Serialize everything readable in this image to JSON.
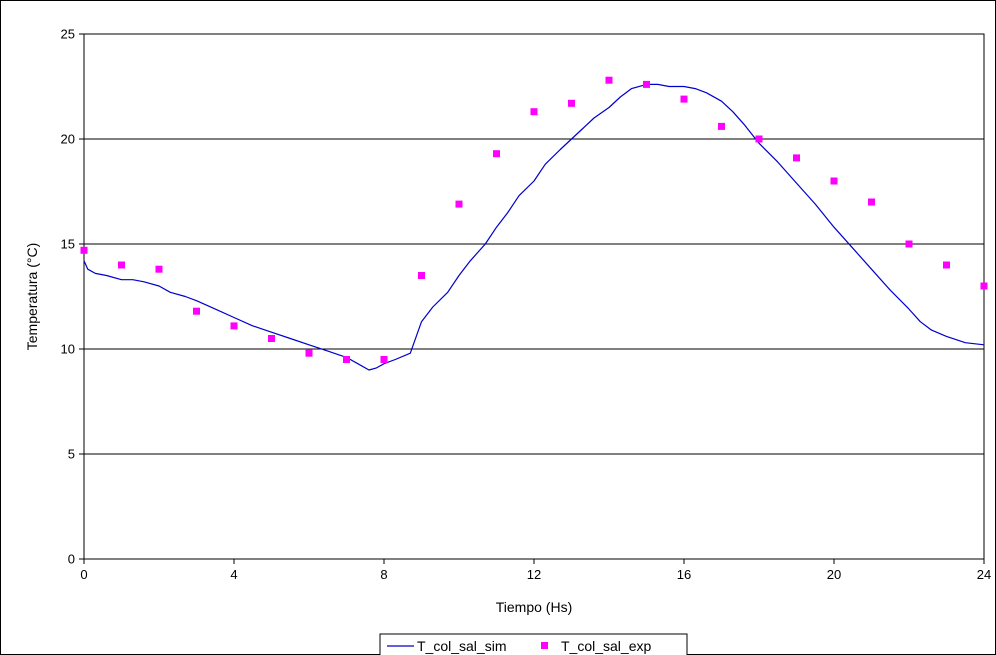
{
  "chart_data": {
    "type": "line",
    "title": "",
    "xlabel": "Tiempo (Hs)",
    "ylabel": "Temperatura (°C)",
    "xlim": [
      0,
      24
    ],
    "ylim": [
      0,
      25
    ],
    "x_ticks": [
      0,
      4,
      8,
      12,
      16,
      20,
      24
    ],
    "y_ticks": [
      0,
      5,
      10,
      15,
      20,
      25
    ],
    "grid": "horizontal major gridlines",
    "legend_position": "bottom",
    "series": [
      {
        "name": "T_col_sal_sim",
        "style": "line",
        "color": "#0000CC",
        "x": [
          0,
          0.1,
          0.3,
          0.6,
          1.0,
          1.3,
          1.6,
          2.0,
          2.3,
          2.7,
          3.0,
          3.5,
          4.0,
          4.5,
          5.0,
          5.5,
          6.0,
          6.5,
          7.0,
          7.3,
          7.6,
          7.8,
          8.0,
          8.3,
          8.7,
          9.0,
          9.3,
          9.7,
          10.0,
          10.3,
          10.7,
          11.0,
          11.3,
          11.6,
          12.0,
          12.3,
          12.7,
          13.0,
          13.3,
          13.6,
          14.0,
          14.3,
          14.6,
          15.0,
          15.3,
          15.6,
          16.0,
          16.3,
          16.6,
          17.0,
          17.3,
          17.6,
          18.0,
          18.5,
          19.0,
          19.5,
          20.0,
          20.5,
          21.0,
          21.5,
          22.0,
          22.3,
          22.6,
          23.0,
          23.5,
          24.0
        ],
        "values": [
          14.2,
          13.8,
          13.6,
          13.5,
          13.3,
          13.3,
          13.2,
          13.0,
          12.7,
          12.5,
          12.3,
          11.9,
          11.5,
          11.1,
          10.8,
          10.5,
          10.2,
          9.9,
          9.6,
          9.3,
          9.0,
          9.1,
          9.3,
          9.5,
          9.8,
          11.3,
          12.0,
          12.7,
          13.5,
          14.2,
          15.0,
          15.8,
          16.5,
          17.3,
          18.0,
          18.8,
          19.5,
          20.0,
          20.5,
          21.0,
          21.5,
          22.0,
          22.4,
          22.6,
          22.6,
          22.5,
          22.5,
          22.4,
          22.2,
          21.8,
          21.3,
          20.7,
          19.8,
          18.9,
          17.9,
          16.9,
          15.8,
          14.8,
          13.8,
          12.8,
          11.9,
          11.3,
          10.9,
          10.6,
          10.3,
          10.2
        ]
      },
      {
        "name": "T_col_sal_exp",
        "style": "markers",
        "color": "#FF00FF",
        "x": [
          0,
          1,
          2,
          3,
          4,
          5,
          6,
          7,
          8,
          9,
          10,
          11,
          12,
          13,
          14,
          15,
          16,
          17,
          18,
          19,
          20,
          21,
          22,
          23,
          24
        ],
        "values": [
          14.7,
          14.0,
          13.8,
          11.8,
          11.1,
          10.5,
          9.8,
          9.5,
          9.5,
          13.5,
          16.9,
          19.3,
          21.3,
          21.7,
          22.8,
          22.6,
          21.9,
          20.6,
          20.0,
          19.1,
          18.0,
          17.0,
          15.0,
          14.0,
          13.0
        ]
      }
    ]
  }
}
